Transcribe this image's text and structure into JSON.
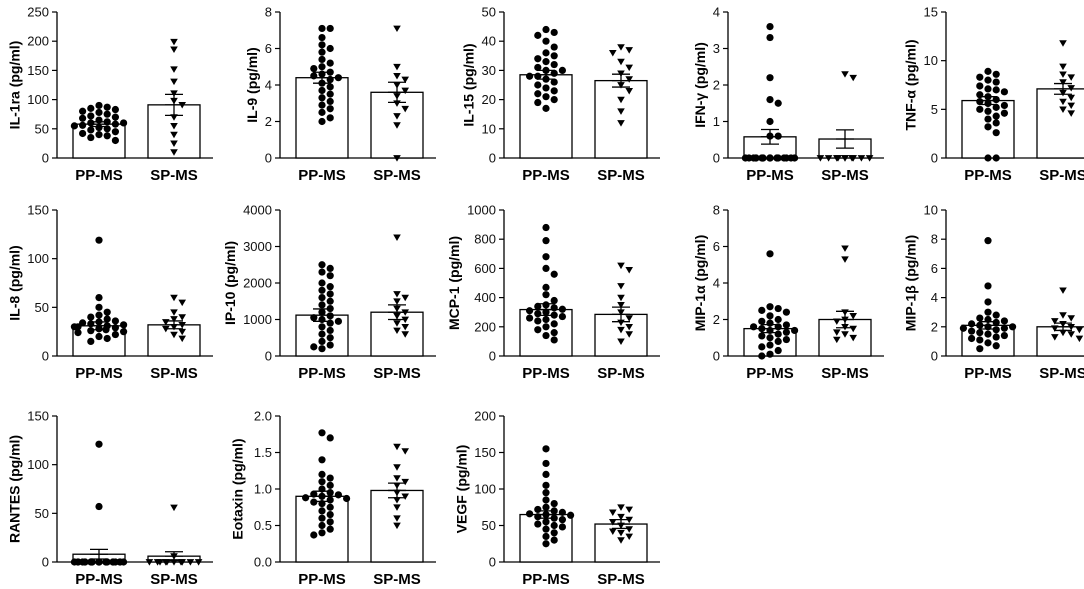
{
  "colors": {
    "ink": "#000000",
    "bar_fill": "#ffffff"
  },
  "chart_data": [
    {
      "type": "bar",
      "ylabel": "IL-1ra (pg/ml)",
      "ylim": [
        0,
        250
      ],
      "yticks": [
        "0",
        "50",
        "100",
        "150",
        "200",
        "250"
      ],
      "yticks_values": [
        0,
        50,
        100,
        150,
        200,
        250
      ],
      "categories": [
        "PP-MS",
        "SP-MS"
      ],
      "means": [
        58,
        91
      ],
      "sems": [
        4,
        18
      ],
      "points": [
        [
          83,
          87,
          90,
          80,
          78,
          85,
          75,
          72,
          70,
          65,
          62,
          68,
          60,
          58,
          55,
          52,
          50,
          48,
          45,
          42,
          40,
          38,
          35,
          30,
          60,
          56
        ],
        [
          199,
          186,
          152,
          131,
          111,
          98,
          91,
          70,
          55,
          40,
          25,
          10
        ]
      ],
      "markers": [
        "circle",
        "triangle-down"
      ]
    },
    {
      "type": "bar",
      "ylabel": "IL-9 (pg/ml)",
      "ylim": [
        0,
        8
      ],
      "yticks": [
        "0",
        "2",
        "4",
        "6",
        "8"
      ],
      "yticks_values": [
        0,
        2,
        4,
        6,
        8
      ],
      "categories": [
        "PP-MS",
        "SP-MS"
      ],
      "means": [
        4.4,
        3.6
      ],
      "sems": [
        0.3,
        0.55
      ],
      "points": [
        [
          7.1,
          7.1,
          6.6,
          6.2,
          6.0,
          5.8,
          5.4,
          5.2,
          4.9,
          4.7,
          4.5,
          4.4,
          4.3,
          4.1,
          3.9,
          3.7,
          3.5,
          3.3,
          3.1,
          2.9,
          2.7,
          2.5,
          2.2,
          2.0,
          5.0,
          4.6
        ],
        [
          7.1,
          5.0,
          4.5,
          4.3,
          4.0,
          3.7,
          3.4,
          3.0,
          2.7,
          2.3,
          1.8,
          0.0
        ]
      ],
      "markers": [
        "circle",
        "triangle-down"
      ]
    },
    {
      "type": "bar",
      "ylabel": "IL-15 (pg/ml)",
      "ylim": [
        0,
        50
      ],
      "yticks": [
        "0",
        "10",
        "20",
        "30",
        "40",
        "50"
      ],
      "yticks_values": [
        0,
        10,
        20,
        30,
        40,
        50
      ],
      "categories": [
        "PP-MS",
        "SP-MS"
      ],
      "means": [
        28.5,
        26.5
      ],
      "sems": [
        1.5,
        2.2
      ],
      "points": [
        [
          44,
          43,
          42,
          40,
          38,
          36,
          35,
          33,
          32,
          31,
          30,
          29,
          28,
          28,
          27,
          26,
          25,
          24,
          23,
          22,
          21,
          20,
          19,
          17,
          34,
          30
        ],
        [
          38,
          37,
          36,
          33,
          31,
          29,
          27,
          25,
          23,
          20,
          16,
          12
        ]
      ],
      "markers": [
        "circle",
        "triangle-down"
      ]
    },
    {
      "type": "bar",
      "ylabel": "IFN-γ (pg/ml)",
      "ylim": [
        0,
        4
      ],
      "yticks": [
        "0",
        "1",
        "2",
        "3",
        "4"
      ],
      "yticks_values": [
        0,
        1,
        2,
        3,
        4
      ],
      "categories": [
        "PP-MS",
        "SP-MS"
      ],
      "means": [
        0.58,
        0.52
      ],
      "sems": [
        0.2,
        0.25
      ],
      "points": [
        [
          3.6,
          3.3,
          2.2,
          1.6,
          1.5,
          1.0,
          0.6,
          0.6,
          0,
          0,
          0,
          0,
          0,
          0,
          0,
          0,
          0,
          0,
          0,
          0,
          0,
          0,
          0,
          0,
          0,
          0
        ],
        [
          2.3,
          2.2,
          0,
          0,
          0,
          0,
          0,
          0,
          0,
          0,
          0,
          0
        ]
      ],
      "markers": [
        "circle",
        "triangle-down"
      ]
    },
    {
      "type": "bar",
      "ylabel": "TNF-α (pg/ml)",
      "ylim": [
        0,
        15
      ],
      "yticks": [
        "0",
        "5",
        "10",
        "15"
      ],
      "yticks_values": [
        0,
        5,
        10,
        15
      ],
      "categories": [
        "PP-MS",
        "SP-MS"
      ],
      "means": [
        5.9,
        7.1
      ],
      "sems": [
        0.4,
        0.55
      ],
      "points": [
        [
          8.9,
          8.6,
          8.3,
          8.0,
          7.8,
          7.4,
          7.1,
          6.8,
          6.5,
          6.3,
          6.0,
          5.8,
          5.6,
          5.4,
          5.2,
          5.0,
          4.8,
          4.6,
          4.3,
          4.0,
          3.6,
          3.2,
          2.6,
          0.0,
          0.0,
          7.0
        ],
        [
          11.8,
          9.4,
          8.6,
          8.3,
          7.8,
          7.2,
          6.7,
          6.2,
          5.8,
          5.4,
          5.0,
          4.6
        ]
      ],
      "markers": [
        "circle",
        "triangle-down"
      ]
    },
    {
      "type": "bar",
      "ylabel": "IL-8 (pg/ml)",
      "ylim": [
        0,
        150
      ],
      "yticks": [
        "0",
        "50",
        "100",
        "150"
      ],
      "yticks_values": [
        0,
        50,
        100,
        150
      ],
      "categories": [
        "PP-MS",
        "SP-MS"
      ],
      "means": [
        31,
        32
      ],
      "sems": [
        4,
        4
      ],
      "points": [
        [
          119,
          60,
          50,
          45,
          42,
          40,
          38,
          36,
          35,
          34,
          33,
          32,
          31,
          30,
          29,
          28,
          27,
          26,
          25,
          24,
          22,
          20,
          18,
          15,
          30,
          28
        ],
        [
          60,
          55,
          45,
          40,
          38,
          35,
          32,
          30,
          28,
          25,
          22,
          18
        ]
      ],
      "markers": [
        "circle",
        "triangle-down"
      ]
    },
    {
      "type": "bar",
      "ylabel": "IP-10 (pg/ml)",
      "ylim": [
        0,
        4000
      ],
      "yticks": [
        "0",
        "1000",
        "2000",
        "3000",
        "4000"
      ],
      "yticks_values": [
        0,
        1000,
        2000,
        3000,
        4000
      ],
      "categories": [
        "PP-MS",
        "SP-MS"
      ],
      "means": [
        1120,
        1200
      ],
      "sems": [
        170,
        200
      ],
      "points": [
        [
          2500,
          2400,
          2300,
          2200,
          2000,
          1900,
          1700,
          1500,
          1400,
          1300,
          1200,
          1100,
          1000,
          900,
          800,
          700,
          600,
          500,
          400,
          300,
          250,
          200,
          1600,
          1800,
          1050,
          950
        ],
        [
          3250,
          1700,
          1600,
          1500,
          1300,
          1200,
          1100,
          1000,
          900,
          800,
          700,
          600
        ]
      ],
      "markers": [
        "circle",
        "triangle-down"
      ]
    },
    {
      "type": "bar",
      "ylabel": "MCP-1 (pg/ml)",
      "ylim": [
        0,
        1000
      ],
      "yticks": [
        "0",
        "200",
        "400",
        "600",
        "800",
        "1000"
      ],
      "yticks_values": [
        0,
        200,
        400,
        600,
        800,
        1000
      ],
      "categories": [
        "PP-MS",
        "SP-MS"
      ],
      "means": [
        318,
        285
      ],
      "sems": [
        40,
        50
      ],
      "points": [
        [
          880,
          790,
          680,
          600,
          560,
          470,
          420,
          380,
          350,
          330,
          310,
          300,
          290,
          280,
          270,
          250,
          240,
          220,
          200,
          180,
          160,
          140,
          110,
          340,
          320,
          260
        ],
        [
          620,
          590,
          480,
          400,
          350,
          300,
          260,
          230,
          200,
          180,
          150,
          100
        ]
      ],
      "markers": [
        "circle",
        "triangle-down"
      ]
    },
    {
      "type": "bar",
      "ylabel": "MIP-1α (pg/ml)",
      "ylim": [
        0,
        8
      ],
      "yticks": [
        "0",
        "2",
        "4",
        "6",
        "8"
      ],
      "yticks_values": [
        0,
        2,
        4,
        6,
        8
      ],
      "categories": [
        "PP-MS",
        "SP-MS"
      ],
      "means": [
        1.5,
        2.0
      ],
      "sems": [
        0.22,
        0.45
      ],
      "points": [
        [
          5.6,
          2.7,
          2.6,
          2.5,
          2.4,
          2.2,
          2.0,
          1.9,
          1.8,
          1.7,
          1.6,
          1.5,
          1.4,
          1.3,
          1.2,
          1.1,
          1.0,
          0.9,
          0.8,
          0.6,
          0.5,
          0.3,
          0.1,
          0.0,
          1.4,
          1.6
        ],
        [
          5.9,
          5.3,
          2.4,
          2.2,
          2.0,
          1.9,
          1.6,
          1.5,
          1.3,
          1.2,
          1.0,
          0.9
        ]
      ],
      "markers": [
        "circle",
        "triangle-down"
      ]
    },
    {
      "type": "bar",
      "ylabel": "MIP-1β (pg/ml)",
      "ylim": [
        0,
        10
      ],
      "yticks": [
        "0",
        "2",
        "4",
        "6",
        "8",
        "10"
      ],
      "yticks_values": [
        0,
        2,
        4,
        6,
        8,
        10
      ],
      "categories": [
        "PP-MS",
        "SP-MS"
      ],
      "means": [
        2.1,
        2.0
      ],
      "sems": [
        0.25,
        0.25
      ],
      "points": [
        [
          7.9,
          4.8,
          3.7,
          3.0,
          2.8,
          2.6,
          2.5,
          2.4,
          2.3,
          2.2,
          2.1,
          2.0,
          1.9,
          1.8,
          1.7,
          1.6,
          1.5,
          1.4,
          1.3,
          1.2,
          1.1,
          0.9,
          0.7,
          0.5,
          2.0,
          1.9
        ],
        [
          4.5,
          2.8,
          2.6,
          2.4,
          2.2,
          2.0,
          1.9,
          1.8,
          1.6,
          1.5,
          1.3,
          1.2
        ]
      ],
      "markers": [
        "circle",
        "triangle-down"
      ]
    },
    {
      "type": "bar",
      "ylabel": "RANTES (pg/ml)",
      "ylim": [
        0,
        150
      ],
      "yticks": [
        "0",
        "50",
        "100",
        "150"
      ],
      "yticks_values": [
        0,
        50,
        100,
        150
      ],
      "categories": [
        "PP-MS",
        "SP-MS"
      ],
      "means": [
        8,
        6
      ],
      "sems": [
        5,
        4.5
      ],
      "points": [
        [
          121,
          57,
          0,
          0,
          0,
          0,
          0,
          0,
          0,
          0,
          0,
          0,
          0,
          0,
          0,
          0,
          0,
          0,
          0,
          0,
          0,
          0,
          0,
          0,
          0,
          0
        ],
        [
          56,
          6,
          0,
          0,
          0,
          0,
          0,
          0,
          0,
          0,
          0,
          0
        ]
      ],
      "markers": [
        "circle",
        "triangle-down"
      ]
    },
    {
      "type": "bar",
      "ylabel": "Eotaxin (pg/ml)",
      "ylim": [
        0,
        2.0
      ],
      "yticks": [
        "0.0",
        "0.5",
        "1.0",
        "1.5",
        "2.0"
      ],
      "yticks_values": [
        0,
        0.5,
        1,
        1.5,
        2
      ],
      "categories": [
        "PP-MS",
        "SP-MS"
      ],
      "means": [
        0.9,
        0.98
      ],
      "sems": [
        0.07,
        0.1
      ],
      "points": [
        [
          1.77,
          1.7,
          1.4,
          1.2,
          1.15,
          1.1,
          1.05,
          1.0,
          0.95,
          0.92,
          0.9,
          0.88,
          0.85,
          0.82,
          0.8,
          0.75,
          0.7,
          0.65,
          0.6,
          0.55,
          0.5,
          0.45,
          0.4,
          0.37,
          0.93,
          0.87
        ],
        [
          1.58,
          1.52,
          1.3,
          1.15,
          1.1,
          1.05,
          0.95,
          0.9,
          0.85,
          0.75,
          0.6,
          0.5
        ]
      ],
      "markers": [
        "circle",
        "triangle-down"
      ]
    },
    {
      "type": "bar",
      "ylabel": "VEGF (pg/ml)",
      "ylim": [
        0,
        200
      ],
      "yticks": [
        "0",
        "50",
        "100",
        "150",
        "200"
      ],
      "yticks_values": [
        0,
        50,
        100,
        150,
        200
      ],
      "categories": [
        "PP-MS",
        "SP-MS"
      ],
      "means": [
        65,
        52
      ],
      "sems": [
        5,
        6
      ],
      "points": [
        [
          155,
          135,
          120,
          105,
          95,
          85,
          80,
          75,
          72,
          70,
          68,
          65,
          62,
          60,
          58,
          55,
          52,
          50,
          48,
          45,
          40,
          35,
          30,
          25,
          66,
          64
        ],
        [
          75,
          72,
          68,
          62,
          58,
          55,
          50,
          45,
          42,
          40,
          35,
          30
        ]
      ],
      "markers": [
        "circle",
        "triangle-down"
      ]
    }
  ]
}
